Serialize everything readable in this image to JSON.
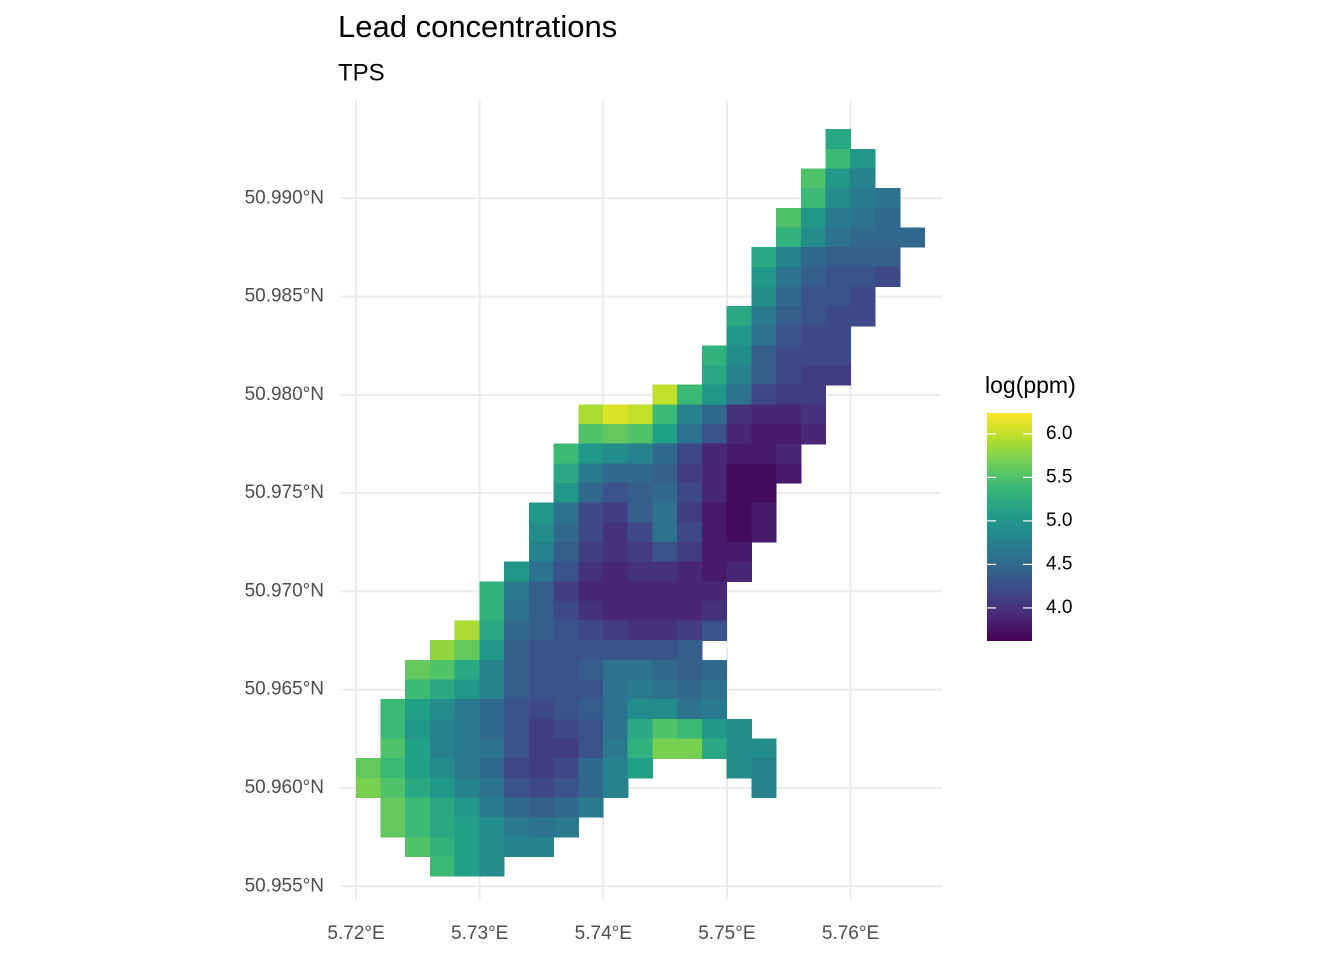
{
  "chart_data": {
    "type": "raster",
    "title": "Lead concentrations",
    "subtitle": "TPS",
    "legend_title": "log(ppm)",
    "xlim": [
      5.7187,
      5.7674
    ],
    "ylim": [
      50.9543,
      50.995
    ],
    "xticks": [
      {
        "value": 5.72,
        "label": "5.72°E"
      },
      {
        "value": 5.73,
        "label": "5.73°E"
      },
      {
        "value": 5.74,
        "label": "5.74°E"
      },
      {
        "value": 5.75,
        "label": "5.75°E"
      },
      {
        "value": 5.76,
        "label": "5.76°E"
      }
    ],
    "yticks": [
      {
        "value": 50.955,
        "label": "50.955°N"
      },
      {
        "value": 50.96,
        "label": "50.960°N"
      },
      {
        "value": 50.965,
        "label": "50.965°N"
      },
      {
        "value": 50.97,
        "label": "50.970°N"
      },
      {
        "value": 50.975,
        "label": "50.975°N"
      },
      {
        "value": 50.98,
        "label": "50.980°N"
      },
      {
        "value": 50.985,
        "label": "50.985°N"
      },
      {
        "value": 50.99,
        "label": "50.990°N"
      }
    ],
    "grid": true,
    "colorscale": [
      "#440154",
      "#482878",
      "#3e4989",
      "#31688e",
      "#26828e",
      "#1f9e89",
      "#35b779",
      "#6ece58",
      "#b5de2b",
      "#fde725"
    ],
    "clim": [
      3.62,
      6.24
    ],
    "cticks": [
      {
        "value": 4,
        "label": "4.0"
      },
      {
        "value": 4.5,
        "label": "4.5"
      },
      {
        "value": 5,
        "label": "5.0"
      },
      {
        "value": 5.5,
        "label": "5.5"
      },
      {
        "value": 6,
        "label": "6.0"
      }
    ],
    "cell_size": [
      0.002,
      0.001
    ],
    "lat": [
      50.993,
      50.992,
      50.991,
      50.99,
      50.989,
      50.988,
      50.987,
      50.986,
      50.985,
      50.984,
      50.983,
      50.982,
      50.981,
      50.98,
      50.979,
      50.978,
      50.977,
      50.976,
      50.975,
      50.974,
      50.973,
      50.972,
      50.971,
      50.97,
      50.969,
      50.968,
      50.967,
      50.966,
      50.965,
      50.964,
      50.963,
      50.962,
      50.961,
      50.96,
      50.959,
      50.958,
      50.957,
      50.956
    ],
    "lon_start": [
      5.759,
      5.759,
      5.757,
      5.757,
      5.755,
      5.755,
      5.753,
      5.753,
      5.753,
      5.751,
      5.751,
      5.749,
      5.749,
      5.745,
      5.739,
      5.739,
      5.737,
      5.737,
      5.737,
      5.735,
      5.735,
      5.735,
      5.733,
      5.731,
      5.731,
      5.729,
      5.727,
      5.725,
      5.725,
      5.723,
      5.723,
      5.723,
      5.721,
      5.721,
      5.723,
      5.723,
      5.725,
      5.727
    ],
    "values": [
      [
        5.2
      ],
      [
        5.4,
        5.0
      ],
      [
        5.5,
        5.0,
        4.8
      ],
      [
        5.4,
        4.9,
        4.7,
        4.6
      ],
      [
        5.5,
        5.0,
        4.7,
        4.6,
        4.5
      ],
      [
        5.3,
        4.9,
        4.6,
        4.5,
        4.5,
        4.5
      ],
      [
        5.2,
        4.8,
        4.5,
        4.4,
        4.4,
        4.4
      ],
      [
        5.0,
        4.6,
        4.4,
        4.3,
        4.3,
        4.2
      ],
      [
        4.9,
        4.5,
        4.3,
        4.3,
        4.2
      ],
      [
        5.2,
        4.7,
        4.4,
        4.3,
        4.2,
        4.2
      ],
      [
        5.0,
        4.6,
        4.3,
        4.2,
        4.2
      ],
      [
        5.3,
        4.9,
        4.4,
        4.2,
        4.2,
        4.2
      ],
      [
        5.2,
        4.8,
        4.4,
        4.2,
        4.1,
        4.1
      ],
      [
        6.0,
        5.4,
        5.0,
        4.6,
        4.2,
        4.1,
        4.1
      ],
      [
        5.9,
        6.1,
        6.0,
        5.4,
        4.8,
        4.5,
        4.0,
        3.9,
        3.9,
        4.0
      ],
      [
        5.5,
        5.6,
        5.5,
        5.1,
        4.6,
        4.3,
        3.9,
        3.8,
        3.8,
        3.9
      ],
      [
        5.4,
        5.0,
        4.9,
        4.8,
        4.5,
        4.2,
        3.9,
        3.8,
        3.8,
        3.9
      ],
      [
        5.2,
        4.7,
        4.5,
        4.5,
        4.4,
        4.1,
        3.9,
        3.7,
        3.7,
        3.8
      ],
      [
        5.0,
        4.5,
        4.3,
        4.4,
        4.5,
        4.2,
        3.9,
        3.7,
        3.7
      ],
      [
        5.0,
        4.6,
        4.2,
        4.1,
        4.4,
        4.6,
        4.1,
        3.8,
        3.7,
        3.8
      ],
      [
        4.9,
        4.5,
        4.2,
        4.0,
        4.2,
        4.6,
        4.2,
        3.8,
        3.7,
        3.8
      ],
      [
        4.8,
        4.4,
        4.1,
        4.0,
        4.1,
        4.3,
        4.1,
        3.8,
        3.8
      ],
      [
        5.0,
        4.6,
        4.3,
        4.0,
        3.9,
        4.0,
        4.0,
        3.9,
        3.8,
        3.9
      ],
      [
        5.3,
        4.7,
        4.4,
        4.1,
        3.9,
        3.9,
        3.9,
        3.9,
        3.9,
        3.9
      ],
      [
        5.3,
        4.6,
        4.4,
        4.2,
        4.0,
        3.9,
        3.9,
        3.9,
        3.9,
        4.0
      ],
      [
        5.9,
        5.2,
        4.5,
        4.4,
        4.3,
        4.2,
        4.1,
        4.0,
        4.0,
        4.1,
        4.3
      ],
      [
        5.8,
        5.6,
        5.0,
        4.4,
        4.3,
        4.3,
        4.3,
        4.3,
        4.3,
        4.3,
        4.4
      ],
      [
        5.6,
        5.5,
        5.2,
        4.8,
        4.4,
        4.3,
        4.3,
        4.4,
        4.6,
        4.6,
        4.5,
        4.4,
        4.5
      ],
      [
        5.4,
        5.2,
        5.0,
        4.8,
        4.4,
        4.3,
        4.3,
        4.3,
        4.6,
        4.7,
        4.6,
        4.5,
        4.6
      ],
      [
        5.4,
        5.1,
        4.9,
        4.7,
        4.5,
        4.3,
        4.2,
        4.3,
        4.4,
        4.6,
        4.9,
        4.9,
        4.6,
        4.7
      ],
      [
        5.4,
        5.0,
        4.8,
        4.7,
        4.5,
        4.3,
        4.1,
        4.2,
        4.3,
        4.6,
        5.2,
        5.5,
        5.4,
        5.0,
        4.9
      ],
      [
        5.5,
        5.1,
        4.8,
        4.7,
        4.6,
        4.3,
        4.1,
        4.1,
        4.3,
        4.7,
        5.3,
        5.7,
        5.7,
        5.2,
        4.9,
        4.9
      ],
      [
        5.6,
        5.4,
        5.1,
        4.9,
        4.7,
        4.5,
        4.2,
        4.1,
        4.2,
        4.5,
        4.8,
        5.1,
        null,
        null,
        null,
        4.9,
        4.8
      ],
      [
        5.7,
        5.5,
        5.2,
        5.0,
        4.8,
        4.6,
        4.3,
        4.2,
        4.3,
        4.5,
        4.8,
        null,
        null,
        null,
        null,
        null,
        4.8
      ],
      [
        5.6,
        5.4,
        5.2,
        5.0,
        4.7,
        4.5,
        4.4,
        4.5,
        4.7
      ],
      [
        5.6,
        5.4,
        5.2,
        5.1,
        4.9,
        4.7,
        4.6,
        4.7
      ],
      [
        5.5,
        5.3,
        5.1,
        4.9,
        4.8,
        4.8
      ],
      [
        5.4,
        5.1,
        4.9
      ]
    ]
  }
}
